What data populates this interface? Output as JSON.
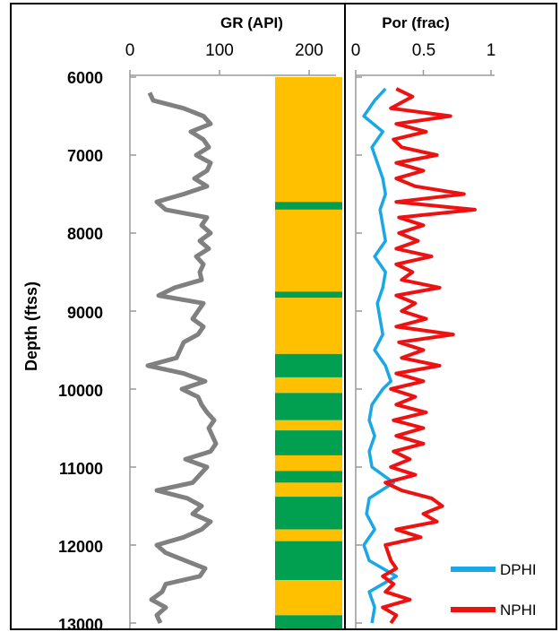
{
  "colors": {
    "gr_curve": "#808080",
    "facies_a": "#FFC000",
    "facies_b": "#00A050",
    "dphi": "#19A7E6",
    "nphi": "#EE1111",
    "frame": "#000000",
    "axis": "#999999"
  },
  "chart_data": [
    {
      "type": "line",
      "title": "GR (API)",
      "xlabel": "",
      "ylabel": "Depth (ftss)",
      "xlim": [
        0,
        230
      ],
      "ylim": [
        13000,
        6000
      ],
      "x_ticks": [
        "0",
        "100",
        "200"
      ],
      "y_ticks": [
        "6000",
        "7000",
        "8000",
        "9000",
        "10000",
        "11000",
        "12000",
        "13000"
      ],
      "axis_position": "top",
      "grid": false,
      "series": [
        {
          "name": "",
          "points": [
            [
              6200,
              22
            ],
            [
              6300,
              26
            ],
            [
              6400,
              60
            ],
            [
              6500,
              82
            ],
            [
              6600,
              90
            ],
            [
              6700,
              68
            ],
            [
              6800,
              82
            ],
            [
              6900,
              88
            ],
            [
              7000,
              74
            ],
            [
              7100,
              90
            ],
            [
              7200,
              86
            ],
            [
              7300,
              72
            ],
            [
              7400,
              86
            ],
            [
              7500,
              60
            ],
            [
              7600,
              30
            ],
            [
              7700,
              40
            ],
            [
              7800,
              86
            ],
            [
              7900,
              80
            ],
            [
              8000,
              90
            ],
            [
              8100,
              78
            ],
            [
              8200,
              88
            ],
            [
              8300,
              74
            ],
            [
              8400,
              82
            ],
            [
              8500,
              78
            ],
            [
              8600,
              80
            ],
            [
              8700,
              50
            ],
            [
              8800,
              32
            ],
            [
              8900,
              82
            ],
            [
              9000,
              76
            ],
            [
              9100,
              70
            ],
            [
              9200,
              82
            ],
            [
              9300,
              76
            ],
            [
              9400,
              60
            ],
            [
              9500,
              56
            ],
            [
              9600,
              52
            ],
            [
              9700,
              20
            ],
            [
              9800,
              60
            ],
            [
              9900,
              84
            ],
            [
              10000,
              58
            ],
            [
              10100,
              76
            ],
            [
              10200,
              80
            ],
            [
              10300,
              86
            ],
            [
              10400,
              94
            ],
            [
              10500,
              88
            ],
            [
              10600,
              92
            ],
            [
              10700,
              96
            ],
            [
              10800,
              90
            ],
            [
              10900,
              62
            ],
            [
              11000,
              86
            ],
            [
              11100,
              78
            ],
            [
              11200,
              70
            ],
            [
              11300,
              30
            ],
            [
              11400,
              64
            ],
            [
              11500,
              80
            ],
            [
              11600,
              70
            ],
            [
              11700,
              90
            ],
            [
              11800,
              80
            ],
            [
              11900,
              60
            ],
            [
              12000,
              30
            ],
            [
              12100,
              40
            ],
            [
              12200,
              62
            ],
            [
              12300,
              84
            ],
            [
              12400,
              78
            ],
            [
              12500,
              40
            ],
            [
              12600,
              36
            ],
            [
              12700,
              24
            ],
            [
              12800,
              40
            ],
            [
              12900,
              30
            ],
            [
              13000,
              34
            ]
          ]
        }
      ],
      "facies": [
        {
          "top": 6000,
          "base": 7600,
          "class": "a"
        },
        {
          "top": 7600,
          "base": 7700,
          "class": "b"
        },
        {
          "top": 7700,
          "base": 8750,
          "class": "a"
        },
        {
          "top": 8750,
          "base": 8830,
          "class": "b"
        },
        {
          "top": 8830,
          "base": 9550,
          "class": "a"
        },
        {
          "top": 9550,
          "base": 9850,
          "class": "b"
        },
        {
          "top": 9850,
          "base": 10050,
          "class": "a"
        },
        {
          "top": 10050,
          "base": 10400,
          "class": "b"
        },
        {
          "top": 10400,
          "base": 10530,
          "class": "a"
        },
        {
          "top": 10530,
          "base": 10850,
          "class": "b"
        },
        {
          "top": 10850,
          "base": 11050,
          "class": "a"
        },
        {
          "top": 11050,
          "base": 11200,
          "class": "b"
        },
        {
          "top": 11200,
          "base": 11380,
          "class": "a"
        },
        {
          "top": 11380,
          "base": 11800,
          "class": "b"
        },
        {
          "top": 11800,
          "base": 11950,
          "class": "a"
        },
        {
          "top": 11950,
          "base": 12450,
          "class": "b"
        },
        {
          "top": 12450,
          "base": 12900,
          "class": "a"
        },
        {
          "top": 12900,
          "base": 13100,
          "class": "b"
        }
      ]
    },
    {
      "type": "line",
      "title": "Por (frac)",
      "xlabel": "",
      "ylabel": "",
      "xlim": [
        0,
        1
      ],
      "ylim": [
        13000,
        6000
      ],
      "x_ticks": [
        "0",
        "0.5",
        "1"
      ],
      "axis_position": "top",
      "grid": false,
      "legend_position": "bottom-right",
      "series": [
        {
          "name": "DPHI",
          "points": [
            [
              6150,
              0.22
            ],
            [
              6300,
              0.14
            ],
            [
              6500,
              0.06
            ],
            [
              6700,
              0.2
            ],
            [
              6900,
              0.12
            ],
            [
              7100,
              0.16
            ],
            [
              7300,
              0.2
            ],
            [
              7500,
              0.22
            ],
            [
              7700,
              0.18
            ],
            [
              7900,
              0.2
            ],
            [
              8100,
              0.22
            ],
            [
              8300,
              0.14
            ],
            [
              8500,
              0.22
            ],
            [
              8700,
              0.2
            ],
            [
              8900,
              0.16
            ],
            [
              9100,
              0.18
            ],
            [
              9300,
              0.2
            ],
            [
              9500,
              0.14
            ],
            [
              9700,
              0.22
            ],
            [
              9900,
              0.26
            ],
            [
              10000,
              0.2
            ],
            [
              10200,
              0.12
            ],
            [
              10400,
              0.1
            ],
            [
              10600,
              0.14
            ],
            [
              10800,
              0.1
            ],
            [
              11000,
              0.12
            ],
            [
              11200,
              0.28
            ],
            [
              11400,
              0.1
            ],
            [
              11600,
              0.08
            ],
            [
              11800,
              0.14
            ],
            [
              12000,
              0.06
            ],
            [
              12200,
              0.1
            ],
            [
              12400,
              0.3
            ],
            [
              12600,
              0.1
            ],
            [
              12800,
              0.14
            ],
            [
              13000,
              0.12
            ]
          ]
        },
        {
          "name": "NPHI",
          "points": [
            [
              6150,
              0.3
            ],
            [
              6250,
              0.42
            ],
            [
              6400,
              0.26
            ],
            [
              6500,
              0.7
            ],
            [
              6600,
              0.3
            ],
            [
              6700,
              0.52
            ],
            [
              6800,
              0.28
            ],
            [
              6900,
              0.34
            ],
            [
              7000,
              0.6
            ],
            [
              7100,
              0.3
            ],
            [
              7200,
              0.5
            ],
            [
              7300,
              0.3
            ],
            [
              7400,
              0.44
            ],
            [
              7500,
              0.8
            ],
            [
              7600,
              0.3
            ],
            [
              7700,
              0.88
            ],
            [
              7800,
              0.32
            ],
            [
              7900,
              0.5
            ],
            [
              8000,
              0.32
            ],
            [
              8100,
              0.46
            ],
            [
              8200,
              0.3
            ],
            [
              8300,
              0.56
            ],
            [
              8400,
              0.3
            ],
            [
              8500,
              0.42
            ],
            [
              8600,
              0.34
            ],
            [
              8700,
              0.62
            ],
            [
              8800,
              0.3
            ],
            [
              8900,
              0.44
            ],
            [
              9000,
              0.34
            ],
            [
              9100,
              0.52
            ],
            [
              9200,
              0.3
            ],
            [
              9300,
              0.72
            ],
            [
              9400,
              0.32
            ],
            [
              9500,
              0.5
            ],
            [
              9600,
              0.34
            ],
            [
              9700,
              0.62
            ],
            [
              9800,
              0.3
            ],
            [
              9900,
              0.5
            ],
            [
              10000,
              0.26
            ],
            [
              10100,
              0.44
            ],
            [
              10200,
              0.3
            ],
            [
              10300,
              0.52
            ],
            [
              10400,
              0.28
            ],
            [
              10500,
              0.5
            ],
            [
              10600,
              0.3
            ],
            [
              10700,
              0.5
            ],
            [
              10800,
              0.28
            ],
            [
              10900,
              0.4
            ],
            [
              11000,
              0.26
            ],
            [
              11100,
              0.44
            ],
            [
              11200,
              0.22
            ],
            [
              11300,
              0.34
            ],
            [
              11400,
              0.56
            ],
            [
              11500,
              0.64
            ],
            [
              11600,
              0.5
            ],
            [
              11700,
              0.6
            ],
            [
              11800,
              0.3
            ],
            [
              11900,
              0.48
            ],
            [
              12000,
              0.22
            ],
            [
              12100,
              0.24
            ],
            [
              12200,
              0.26
            ],
            [
              12300,
              0.3
            ],
            [
              12400,
              0.2
            ],
            [
              12500,
              0.28
            ],
            [
              12600,
              0.22
            ],
            [
              12700,
              0.4
            ],
            [
              12800,
              0.2
            ],
            [
              12900,
              0.3
            ],
            [
              13000,
              0.26
            ]
          ]
        }
      ]
    }
  ]
}
